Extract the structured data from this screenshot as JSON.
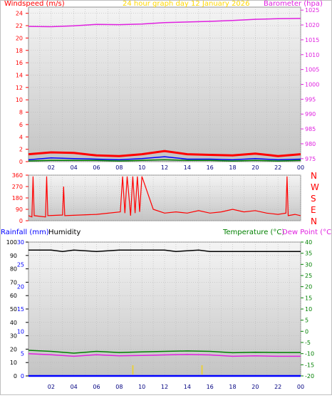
{
  "chart_data": [
    {
      "panel": "wind-pressure",
      "type": "line",
      "title": "24 hour graph day   12 January 2026",
      "ylabel_left": "Windspeed (m/s)",
      "ylabel_right": "Barometer (hpa)",
      "x_ticks": [
        "02",
        "04",
        "06",
        "08",
        "10",
        "12",
        "14",
        "16",
        "18",
        "20",
        "22",
        "00"
      ],
      "y_left_ticks": [
        0,
        2,
        4,
        6,
        8,
        10,
        12,
        14,
        16,
        18,
        20,
        22,
        24
      ],
      "y_left_range": [
        0,
        25
      ],
      "y_right_ticks": [
        975,
        980,
        985,
        990,
        995,
        1000,
        1005,
        1010,
        1015,
        1020,
        1025
      ],
      "y_right_range": [
        974,
        1026
      ],
      "grid": true,
      "series": [
        {
          "color": "#e020e0",
          "axis": "right",
          "x": [
            0,
            2,
            4,
            6,
            8,
            10,
            12,
            14,
            16,
            18,
            20,
            22,
            24
          ],
          "values": [
            1019.5,
            1019.4,
            1019.7,
            1020.2,
            1020.1,
            1020.3,
            1020.8,
            1021.0,
            1021.2,
            1021.5,
            1021.9,
            1022.1,
            1022.2
          ]
        },
        {
          "color": "#ff0000",
          "axis": "left",
          "x": [
            0,
            2,
            4,
            6,
            8,
            10,
            12,
            14,
            16,
            18,
            20,
            22,
            24
          ],
          "values": [
            1.2,
            1.5,
            1.4,
            1.0,
            0.9,
            1.2,
            1.7,
            1.2,
            1.1,
            1.0,
            1.3,
            0.9,
            1.2
          ]
        },
        {
          "color": "#0000ff",
          "axis": "left",
          "x": [
            0,
            2,
            4,
            6,
            8,
            10,
            12,
            14,
            16,
            18,
            20,
            22,
            24
          ],
          "values": [
            0.3,
            0.6,
            0.5,
            0.4,
            0.3,
            0.5,
            0.8,
            0.4,
            0.4,
            0.3,
            0.5,
            0.3,
            0.4
          ]
        },
        {
          "color": "#008000",
          "axis": "left",
          "x": [
            0,
            2,
            4,
            6,
            8,
            10,
            12,
            14,
            16,
            18,
            20,
            22,
            24
          ],
          "values": [
            0.1,
            0.2,
            0.2,
            0.2,
            0.1,
            0.2,
            0.3,
            0.2,
            0.2,
            0.1,
            0.2,
            0.1,
            0.2
          ]
        }
      ]
    },
    {
      "panel": "wind-direction",
      "type": "line",
      "x_ticks": [
        "02",
        "04",
        "06",
        "08",
        "10",
        "12",
        "14",
        "16",
        "18",
        "20",
        "22",
        "00"
      ],
      "y_ticks": [
        0,
        90,
        180,
        270,
        360
      ],
      "y_range": [
        0,
        360
      ],
      "compass_labels": [
        "N",
        "W",
        "S",
        "E",
        "N"
      ],
      "grid": true,
      "series": [
        {
          "color": "#ff0000",
          "x": [
            0,
            0.3,
            0.4,
            0.5,
            1.5,
            1.6,
            1.7,
            3.0,
            3.1,
            3.2,
            6.0,
            8.1,
            8.3,
            8.5,
            8.7,
            9.0,
            9.2,
            9.4,
            9.6,
            9.8,
            10.0,
            11,
            12,
            13,
            14,
            15,
            16,
            17,
            18,
            19,
            20,
            21,
            22,
            22.7,
            22.8,
            22.9,
            23.5,
            24
          ],
          "values": [
            40,
            30,
            350,
            40,
            30,
            350,
            40,
            45,
            270,
            40,
            50,
            70,
            350,
            60,
            350,
            40,
            350,
            60,
            350,
            70,
            350,
            90,
            60,
            70,
            60,
            80,
            60,
            70,
            90,
            70,
            80,
            60,
            50,
            60,
            350,
            40,
            50,
            40
          ]
        }
      ]
    },
    {
      "panel": "temperature-humidity-rain",
      "type": "line",
      "ylabel_left": "Rainfall (mm)",
      "ylabel_left2": "Humidity",
      "ylabel_right": "Temperature (°C)",
      "ylabel_right2": "Dew Point (°C)",
      "x_ticks": [
        "02",
        "04",
        "06",
        "08",
        "10",
        "12",
        "14",
        "16",
        "18",
        "20",
        "22",
        "00"
      ],
      "humidity_ticks": [
        0,
        10,
        20,
        30,
        40,
        50,
        60,
        70,
        80,
        90,
        100
      ],
      "humidity_range": [
        0,
        100
      ],
      "rain_ticks": [
        0,
        5,
        10,
        15,
        20,
        25,
        30
      ],
      "rain_range": [
        0,
        30
      ],
      "temp_ticks": [
        -20,
        -15,
        -10,
        -5,
        0,
        5,
        10,
        15,
        20,
        25,
        30,
        35,
        40
      ],
      "temp_range": [
        -20,
        40
      ],
      "grid": true,
      "series": [
        {
          "name": "Humidity",
          "color": "#000000",
          "axis": "humidity",
          "x": [
            0,
            2,
            3,
            4,
            6,
            8,
            10,
            12,
            13,
            15,
            16,
            18,
            20,
            22,
            24
          ],
          "values": [
            94,
            94,
            93,
            94,
            93,
            94,
            94,
            94,
            93,
            94,
            93,
            93,
            93,
            93,
            93
          ]
        },
        {
          "name": "Temperature (°C)",
          "color": "#008000",
          "axis": "temp",
          "x": [
            0,
            2,
            4,
            6,
            8,
            10,
            12,
            14,
            16,
            18,
            20,
            22,
            24
          ],
          "values": [
            -8.5,
            -9.0,
            -9.8,
            -9.0,
            -9.5,
            -9.2,
            -9.0,
            -8.8,
            -9.0,
            -9.6,
            -9.4,
            -9.5,
            -9.5
          ]
        },
        {
          "name": "Dew Point (°C)",
          "color": "#e020e0",
          "axis": "temp",
          "x": [
            0,
            2,
            4,
            6,
            8,
            10,
            12,
            14,
            16,
            18,
            20,
            22,
            24
          ],
          "values": [
            -10.0,
            -10.5,
            -11.2,
            -10.5,
            -11.0,
            -10.8,
            -10.6,
            -10.4,
            -10.6,
            -11.2,
            -11.0,
            -11.2,
            -11.2
          ]
        },
        {
          "name": "Rainfall (mm)",
          "color": "#0000ff",
          "axis": "rain",
          "x": [
            0,
            24
          ],
          "values": [
            0,
            0
          ]
        }
      ],
      "markers": [
        {
          "color": "#e8d040",
          "x": [
            9.2,
            15.3
          ]
        }
      ]
    }
  ]
}
